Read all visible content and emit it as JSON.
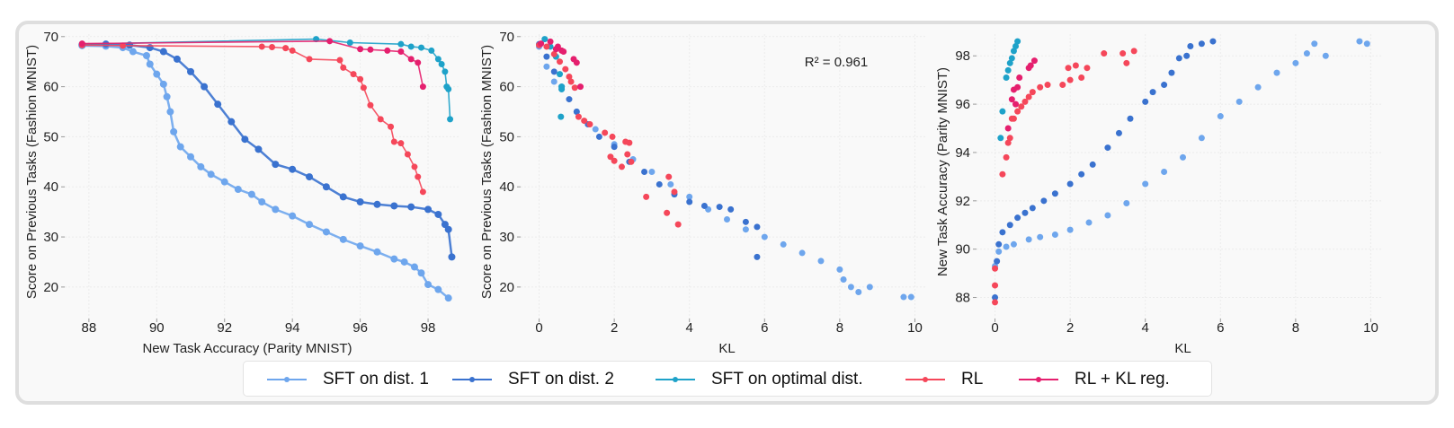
{
  "chart_data": [
    {
      "type": "line",
      "title": "",
      "xlabel": "New Task Accuracy (Parity MNIST)",
      "ylabel": "Score on Previous Tasks (Fashion MNIST)",
      "xlim": [
        87.5,
        98.9
      ],
      "ylim": [
        15.5,
        70.5
      ],
      "xticks": [
        88,
        90,
        92,
        94,
        96,
        98
      ],
      "yticks": [
        20,
        30,
        40,
        50,
        60,
        70
      ],
      "grid": true,
      "series": [
        {
          "name": "SFT on dist. 1",
          "x": [
            87.8,
            88.5,
            89.0,
            89.3,
            89.7,
            89.8,
            90.0,
            90.2,
            90.3,
            90.4,
            90.5,
            90.7,
            91.0,
            91.3,
            91.6,
            92.0,
            92.4,
            92.8,
            93.1,
            93.5,
            94.0,
            94.5,
            95.0,
            95.5,
            96.0,
            96.5,
            97.0,
            97.3,
            97.6,
            97.8,
            98.0,
            98.3,
            98.6
          ],
          "y": [
            68.2,
            68.1,
            67.8,
            67.0,
            66.2,
            64.5,
            62.5,
            60.5,
            58.0,
            55.0,
            51.0,
            48.0,
            46.0,
            44.0,
            42.5,
            41.0,
            39.5,
            38.5,
            37.0,
            35.5,
            34.2,
            32.5,
            31.0,
            29.5,
            28.2,
            27.0,
            25.6,
            25.0,
            24.0,
            22.8,
            20.5,
            19.5,
            17.8
          ]
        },
        {
          "name": "SFT on dist. 2",
          "x": [
            87.8,
            88.5,
            89.2,
            89.8,
            90.2,
            90.6,
            91.0,
            91.4,
            91.8,
            92.2,
            92.6,
            93.0,
            93.5,
            94.0,
            94.5,
            95.0,
            95.5,
            96.0,
            96.5,
            97.0,
            97.5,
            98.0,
            98.3,
            98.5,
            98.6,
            98.7
          ],
          "y": [
            68.4,
            68.5,
            68.3,
            67.8,
            67.0,
            65.5,
            63.0,
            60.0,
            56.5,
            53.0,
            49.5,
            47.5,
            44.5,
            43.5,
            42.0,
            40.0,
            38.0,
            37.0,
            36.5,
            36.2,
            36.0,
            35.5,
            34.5,
            32.5,
            31.5,
            26.0
          ]
        },
        {
          "name": "SFT on optimal dist.",
          "x": [
            87.8,
            94.7,
            95.7,
            97.2,
            97.5,
            97.8,
            98.1,
            98.3,
            98.4,
            98.5,
            98.55,
            98.6,
            98.65
          ],
          "y": [
            68.5,
            69.5,
            68.8,
            68.5,
            68.0,
            67.8,
            67.2,
            65.5,
            64.5,
            63.0,
            60.0,
            59.5,
            53.5
          ]
        },
        {
          "name": "RL",
          "x": [
            87.8,
            89.0,
            93.1,
            93.4,
            93.8,
            94.0,
            94.5,
            95.4,
            95.5,
            95.8,
            96.0,
            96.1,
            96.3,
            96.6,
            96.9,
            97.0,
            97.2,
            97.4,
            97.6,
            97.7,
            97.85
          ],
          "y": [
            68.3,
            68.2,
            68.0,
            67.9,
            67.7,
            67.2,
            65.5,
            65.3,
            63.8,
            62.5,
            61.5,
            59.8,
            56.3,
            53.5,
            52.0,
            49.0,
            48.7,
            46.5,
            44.0,
            42.0,
            39.0
          ]
        },
        {
          "name": "RL + KL reg.",
          "x": [
            87.8,
            95.1,
            96.0,
            96.3,
            96.8,
            97.2,
            97.5,
            97.7,
            97.85
          ],
          "y": [
            68.6,
            69.1,
            67.5,
            67.4,
            67.2,
            67.0,
            65.5,
            64.8,
            60.0
          ]
        }
      ]
    },
    {
      "type": "scatter",
      "title": "",
      "annotation": "R² = 0.961",
      "xlabel": "KL",
      "ylabel": "Score on Previous Tasks (Fashion MNIST)",
      "xlim": [
        -0.3,
        10.3
      ],
      "ylim": [
        15.5,
        70.5
      ],
      "xticks": [
        0,
        2,
        4,
        6,
        8,
        10
      ],
      "yticks": [
        20,
        30,
        40,
        50,
        60,
        70
      ],
      "grid": true,
      "series": [
        {
          "name": "SFT on dist. 1",
          "x": [
            0.0,
            0.2,
            0.4,
            0.6,
            1.0,
            1.5,
            2.0,
            2.5,
            3.0,
            3.5,
            4.0,
            4.5,
            5.0,
            5.5,
            6.0,
            6.5,
            7.0,
            7.5,
            8.0,
            8.1,
            8.3,
            8.5,
            8.8,
            9.7,
            9.9
          ],
          "y": [
            68.0,
            64.0,
            61.0,
            59.5,
            55.0,
            51.5,
            48.5,
            45.5,
            43.0,
            40.5,
            38.0,
            35.5,
            33.5,
            31.5,
            30.0,
            28.5,
            26.8,
            25.2,
            23.5,
            21.5,
            20.0,
            19.0,
            20.0,
            18.0,
            18.0
          ]
        },
        {
          "name": "SFT on dist. 2",
          "x": [
            0.0,
            0.2,
            0.4,
            0.6,
            0.8,
            1.0,
            1.3,
            1.6,
            2.0,
            2.4,
            2.8,
            3.2,
            3.6,
            4.0,
            4.4,
            4.8,
            5.1,
            5.5,
            5.8,
            5.8
          ],
          "y": [
            68.5,
            66.0,
            63.0,
            60.0,
            57.5,
            55.0,
            52.5,
            50.0,
            48.0,
            45.0,
            43.0,
            40.5,
            38.5,
            37.0,
            36.2,
            36.0,
            35.5,
            33.0,
            32.0,
            26.0
          ]
        },
        {
          "name": "SFT on optimal dist.",
          "x": [
            0.15,
            0.3,
            0.45,
            0.55,
            0.6,
            0.6,
            0.58
          ],
          "y": [
            69.5,
            68.0,
            66.0,
            62.5,
            60.0,
            59.5,
            54.0
          ]
        },
        {
          "name": "RL",
          "x": [
            0.0,
            0.2,
            0.4,
            0.55,
            0.7,
            0.8,
            0.85,
            0.95,
            1.05,
            1.2,
            1.35,
            1.75,
            1.95,
            2.3,
            2.4,
            1.9,
            2.0,
            2.2,
            2.35,
            2.45,
            2.85,
            3.45,
            3.6,
            3.4,
            3.7
          ],
          "y": [
            68.3,
            68.0,
            66.5,
            65.0,
            63.5,
            62.0,
            61.0,
            59.8,
            54.0,
            53.2,
            52.5,
            50.8,
            50.0,
            49.0,
            48.8,
            46.0,
            45.2,
            44.0,
            46.5,
            45.0,
            38.0,
            42.0,
            39.0,
            34.8,
            32.5
          ]
        },
        {
          "name": "RL + KL reg.",
          "x": [
            0.05,
            0.3,
            0.45,
            0.5,
            0.6,
            0.65,
            0.92,
            1.0,
            1.1
          ],
          "y": [
            68.6,
            69.0,
            67.5,
            68.0,
            67.2,
            67.0,
            65.5,
            64.8,
            60.0
          ]
        }
      ]
    },
    {
      "type": "scatter",
      "title": "",
      "xlabel": "KL",
      "ylabel": "New Task Accuracy (Parity MNIST)",
      "xlim": [
        -0.3,
        10.3
      ],
      "ylim": [
        87.5,
        98.9
      ],
      "xticks": [
        0,
        2,
        4,
        6,
        8,
        10
      ],
      "yticks": [
        88,
        90,
        92,
        94,
        96,
        98
      ],
      "grid": true,
      "series": [
        {
          "name": "SFT on dist. 1",
          "x": [
            0.0,
            0.1,
            0.3,
            0.5,
            0.9,
            1.2,
            1.6,
            2.0,
            2.5,
            3.0,
            3.5,
            4.0,
            4.5,
            5.0,
            5.5,
            6.0,
            6.5,
            7.0,
            7.5,
            8.0,
            8.3,
            8.5,
            8.8,
            9.7,
            9.9
          ],
          "y": [
            89.3,
            89.9,
            90.1,
            90.2,
            90.4,
            90.5,
            90.6,
            90.8,
            91.1,
            91.4,
            91.9,
            92.7,
            93.2,
            93.8,
            94.6,
            95.5,
            96.1,
            96.7,
            97.3,
            97.7,
            98.1,
            98.5,
            98.0,
            98.6,
            98.5
          ]
        },
        {
          "name": "SFT on dist. 2",
          "x": [
            0.0,
            0.05,
            0.1,
            0.2,
            0.4,
            0.6,
            0.8,
            1.0,
            1.3,
            1.6,
            2.0,
            2.3,
            2.6,
            3.0,
            3.3,
            3.6,
            4.0,
            4.2,
            4.5,
            4.7,
            4.9,
            5.1,
            5.2,
            5.5,
            5.8
          ],
          "y": [
            88.0,
            89.5,
            90.2,
            90.7,
            91.0,
            91.3,
            91.5,
            91.7,
            92.0,
            92.3,
            92.7,
            93.1,
            93.5,
            94.2,
            94.8,
            95.4,
            96.1,
            96.5,
            96.8,
            97.3,
            97.9,
            98.0,
            98.4,
            98.5,
            98.6
          ]
        },
        {
          "name": "SFT on optimal dist.",
          "x": [
            0.15,
            0.2,
            0.3,
            0.35,
            0.4,
            0.45,
            0.5,
            0.55,
            0.6
          ],
          "y": [
            94.6,
            95.7,
            97.1,
            97.4,
            97.7,
            97.9,
            98.2,
            98.4,
            98.6
          ]
        },
        {
          "name": "RL",
          "x": [
            0.0,
            0.0,
            0.0,
            0.2,
            0.3,
            0.35,
            0.4,
            0.45,
            0.5,
            0.6,
            0.7,
            0.8,
            0.9,
            1.0,
            1.2,
            1.4,
            1.8,
            2.0,
            1.95,
            2.15,
            2.3,
            2.45,
            2.9,
            3.4,
            3.5,
            3.7
          ],
          "y": [
            87.8,
            88.5,
            89.2,
            93.1,
            93.8,
            94.4,
            94.6,
            95.4,
            95.4,
            95.7,
            95.9,
            96.1,
            96.3,
            96.5,
            96.7,
            96.8,
            96.8,
            97.0,
            97.5,
            97.6,
            97.1,
            97.5,
            98.1,
            98.1,
            97.7,
            98.2
          ]
        },
        {
          "name": "RL + KL reg.",
          "x": [
            0.35,
            0.45,
            0.5,
            0.55,
            0.6,
            0.65,
            0.9,
            0.95,
            1.05
          ],
          "y": [
            95.0,
            96.2,
            96.6,
            96.0,
            96.7,
            97.1,
            97.5,
            97.6,
            97.8
          ]
        }
      ]
    }
  ],
  "legend": {
    "placement": "bottom-center",
    "items": [
      {
        "label": "SFT on dist. 1",
        "color": "#6ea6ed"
      },
      {
        "label": "SFT on dist. 2",
        "color": "#3a72cf"
      },
      {
        "label": "SFT on optimal dist.",
        "color": "#1ea2c9"
      },
      {
        "label": "RL",
        "color": "#f5475a"
      },
      {
        "label": "RL + KL reg.",
        "color": "#e51f6e"
      }
    ]
  },
  "colors": {
    "SFT on dist. 1": "#6ea6ed",
    "SFT on dist. 2": "#3a72cf",
    "SFT on optimal dist.": "#1ea2c9",
    "RL": "#f5475a",
    "RL + KL reg.": "#e51f6e"
  }
}
